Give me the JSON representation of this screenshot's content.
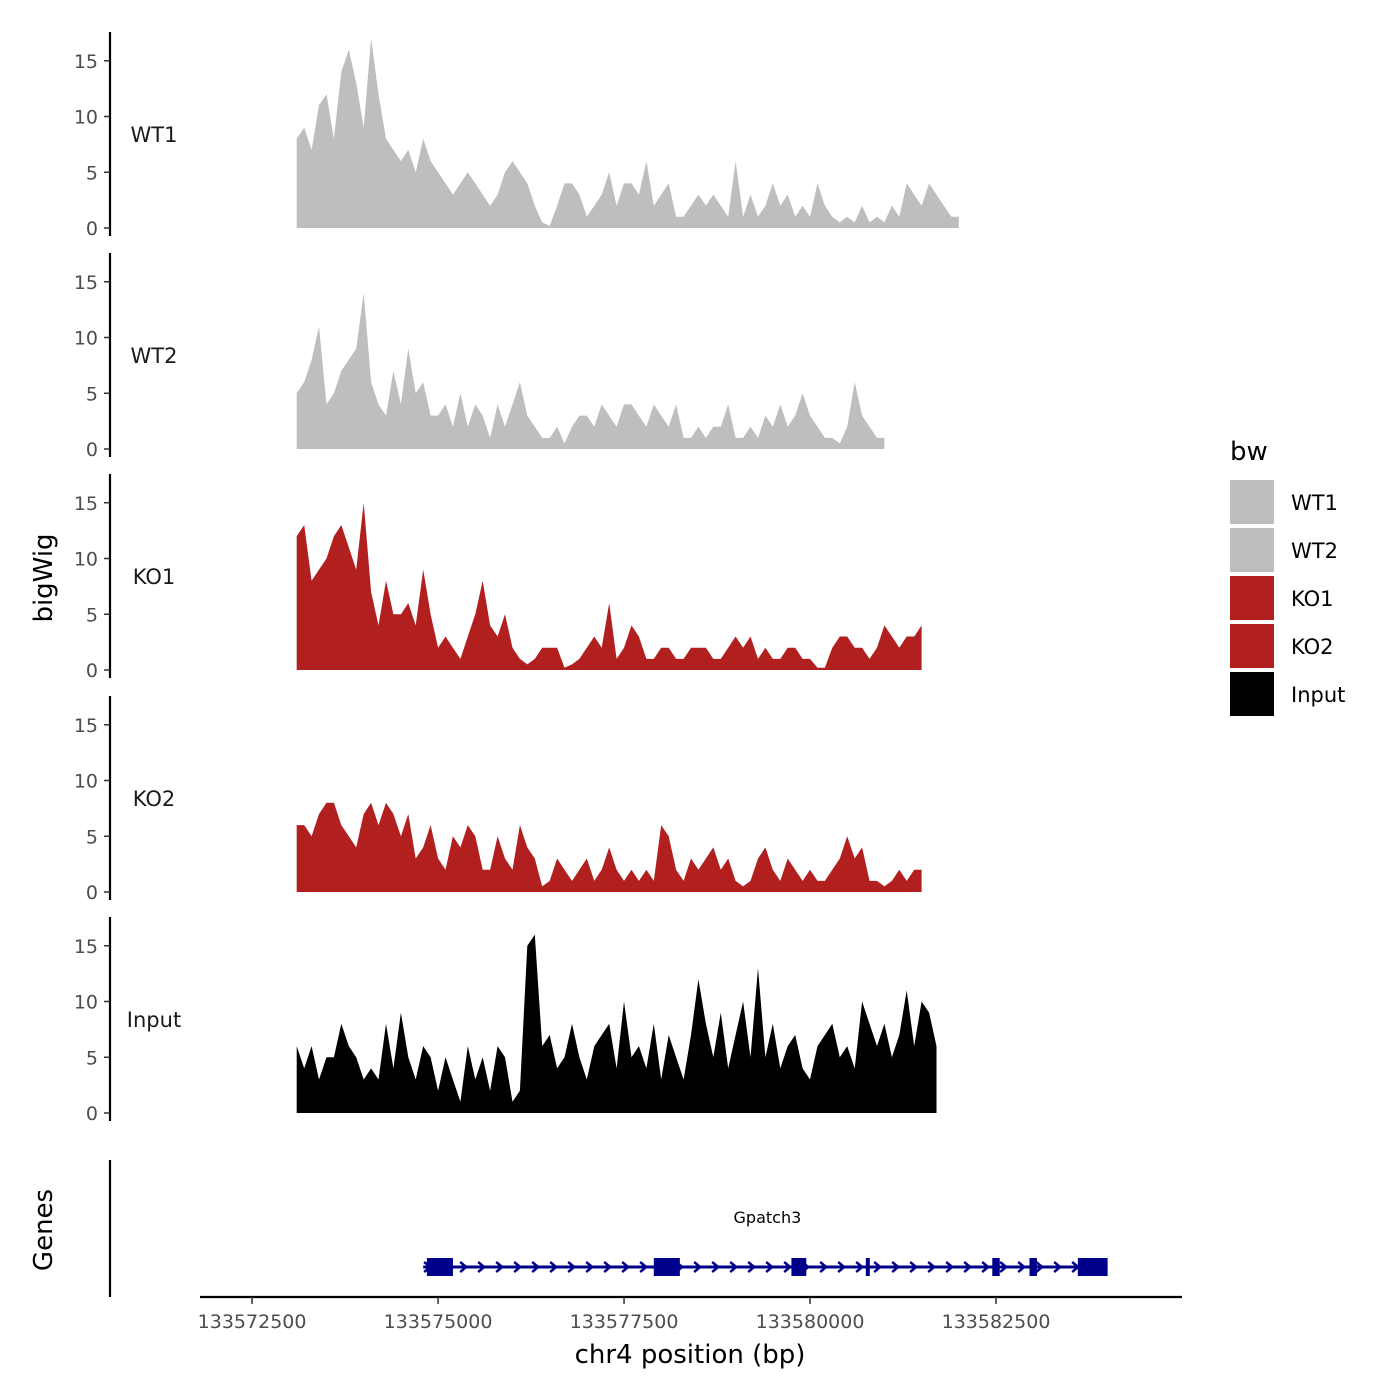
{
  "chart_data": {
    "type": "area",
    "title": "",
    "xlabel": "chr4 position (bp)",
    "ylabel": "bigWig",
    "genes_label": "Genes",
    "xlim": [
      133571800,
      133585000
    ],
    "ylim": [
      0,
      17.5
    ],
    "x_ticks": [
      133572500,
      133575000,
      133577500,
      133580000,
      133582500
    ],
    "y_ticks": [
      0,
      5,
      10,
      15
    ],
    "grid": false,
    "legend": {
      "title": "bw",
      "position": "right",
      "entries": [
        {
          "label": "WT1",
          "color": "#bebebe"
        },
        {
          "label": "WT2",
          "color": "#bebebe"
        },
        {
          "label": "KO1",
          "color": "#b21f1f"
        },
        {
          "label": "KO2",
          "color": "#b21f1f"
        },
        {
          "label": "Input",
          "color": "#000000"
        }
      ]
    },
    "x_start": 133573100,
    "x_step": 100,
    "series": [
      {
        "name": "WT1",
        "color": "#bebebe",
        "values": [
          8,
          9,
          7,
          11,
          12,
          8,
          14,
          16,
          13,
          9,
          17,
          12,
          8,
          7,
          6,
          7,
          5,
          8,
          6,
          5,
          4,
          3,
          4,
          5,
          4,
          3,
          2,
          3,
          5,
          6,
          5,
          4,
          2,
          0.5,
          0.2,
          2,
          4,
          4,
          3,
          1,
          2,
          3,
          5,
          2,
          4,
          4,
          3,
          6,
          2,
          3,
          4,
          1,
          1,
          2,
          3,
          2,
          3,
          2,
          1,
          6,
          1,
          3,
          1,
          2,
          4,
          2,
          3,
          1,
          2,
          1,
          4,
          2,
          1,
          0.5,
          1,
          0.5,
          2,
          0.5,
          1,
          0.5,
          2,
          1,
          4,
          3,
          2,
          4,
          3,
          2,
          1,
          1
        ]
      },
      {
        "name": "WT2",
        "color": "#bebebe",
        "values": [
          5,
          6,
          8,
          11,
          4,
          5,
          7,
          8,
          9,
          14,
          6,
          4,
          3,
          7,
          4,
          9,
          5,
          6,
          3,
          3,
          4,
          2,
          5,
          2,
          4,
          3,
          1,
          4,
          2,
          4,
          6,
          3,
          2,
          1,
          1,
          2,
          0.5,
          2,
          3,
          3,
          2,
          4,
          3,
          2,
          4,
          4,
          3,
          2,
          4,
          3,
          2,
          4,
          1,
          1,
          2,
          1,
          2,
          2,
          4,
          1,
          1,
          2,
          1,
          3,
          2,
          4,
          2,
          3,
          5,
          3,
          2,
          1,
          1,
          0.5,
          2,
          6,
          3,
          2,
          1,
          1
        ]
      },
      {
        "name": "KO1",
        "color": "#b21f1f",
        "values": [
          12,
          13,
          8,
          9,
          10,
          12,
          13,
          11,
          9,
          15,
          7,
          4,
          8,
          5,
          5,
          6,
          4,
          9,
          5,
          2,
          3,
          2,
          1,
          3,
          5,
          8,
          4,
          3,
          5,
          2,
          1,
          0.5,
          1,
          2,
          2,
          2,
          0.2,
          0.5,
          1,
          2,
          3,
          2,
          6,
          1,
          2,
          4,
          3,
          1,
          1,
          2,
          2,
          1,
          1,
          2,
          2,
          2,
          1,
          1,
          2,
          3,
          2,
          3,
          1,
          2,
          1,
          1,
          2,
          2,
          1,
          1,
          0.2,
          0.2,
          2,
          3,
          3,
          2,
          2,
          1,
          2,
          4,
          3,
          2,
          3,
          3,
          4
        ]
      },
      {
        "name": "KO2",
        "color": "#b21f1f",
        "values": [
          6,
          6,
          5,
          7,
          8,
          8,
          6,
          5,
          4,
          7,
          8,
          6,
          8,
          7,
          5,
          7,
          3,
          4,
          6,
          3,
          2,
          5,
          4,
          6,
          5,
          2,
          2,
          5,
          3,
          2,
          6,
          4,
          3,
          0.5,
          1,
          3,
          2,
          1,
          2,
          3,
          1,
          2,
          4,
          2,
          1,
          2,
          1,
          2,
          1,
          6,
          5,
          2,
          1,
          3,
          2,
          3,
          4,
          2,
          3,
          1,
          0.5,
          1,
          3,
          4,
          2,
          1,
          3,
          2,
          1,
          2,
          1,
          1,
          2,
          3,
          5,
          3,
          4,
          1,
          1,
          0.5,
          1,
          2,
          1,
          2,
          2
        ]
      },
      {
        "name": "Input",
        "color": "#000000",
        "values": [
          6,
          4,
          6,
          3,
          5,
          5,
          8,
          6,
          5,
          3,
          4,
          3,
          8,
          4,
          9,
          5,
          3,
          6,
          5,
          2,
          5,
          3,
          1,
          6,
          3,
          5,
          2,
          6,
          5,
          1,
          2,
          15,
          16,
          6,
          7,
          4,
          5,
          8,
          5,
          3,
          6,
          7,
          8,
          4,
          10,
          5,
          6,
          4,
          8,
          3,
          7,
          5,
          3,
          7,
          12,
          8,
          5,
          9,
          4,
          7,
          10,
          5,
          13,
          5,
          8,
          4,
          6,
          7,
          4,
          3,
          6,
          7,
          8,
          5,
          6,
          4,
          10,
          8,
          6,
          8,
          5,
          7,
          11,
          6,
          10,
          9,
          6
        ]
      }
    ],
    "gene": {
      "name": "Gpatch3",
      "color": "#00008b",
      "strand": "+",
      "start": 133574800,
      "end": 133584000,
      "exons": [
        [
          133574850,
          133575200
        ],
        [
          133577900,
          133578250
        ],
        [
          133579750,
          133579950
        ],
        [
          133580750,
          133580800
        ],
        [
          133582450,
          133582550
        ],
        [
          133582950,
          133583050
        ],
        [
          133583600,
          133584000
        ]
      ]
    }
  }
}
